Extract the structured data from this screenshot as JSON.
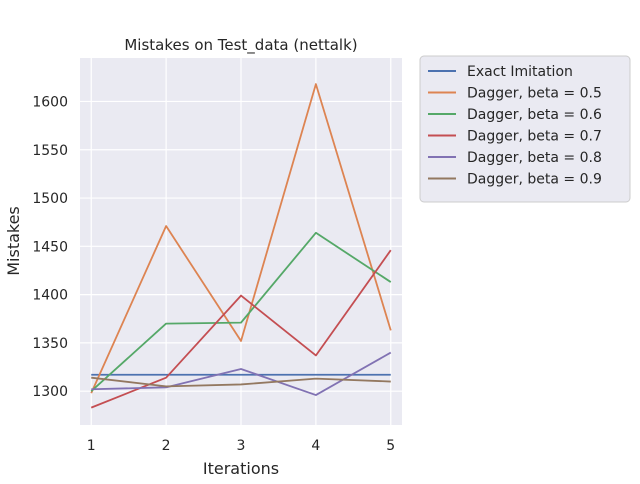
{
  "chart_data": {
    "type": "line",
    "title": "Mistakes on Test_data (nettalk)",
    "xlabel": "Iterations",
    "ylabel": "Mistakes",
    "x": [
      1,
      2,
      3,
      4,
      5
    ],
    "xticks": [
      1,
      2,
      3,
      4,
      5
    ],
    "xlim": [
      0.85,
      5.15
    ],
    "yticks": [
      1300,
      1350,
      1400,
      1450,
      1500,
      1550,
      1600
    ],
    "ylim": [
      1265,
      1645
    ],
    "grid": true,
    "legend_position": "outside-right",
    "series": [
      {
        "name": "Exact Imitation",
        "color": "#4c72b0",
        "values": [
          1317,
          1317,
          1317,
          1317,
          1317
        ]
      },
      {
        "name": "Dagger, beta = 0.5",
        "color": "#dd8452",
        "values": [
          1298,
          1471,
          1352,
          1618,
          1363
        ]
      },
      {
        "name": "Dagger, beta = 0.6",
        "color": "#55a868",
        "values": [
          1300,
          1370,
          1371,
          1464,
          1413
        ]
      },
      {
        "name": "Dagger, beta = 0.7",
        "color": "#c44e52",
        "values": [
          1283,
          1314,
          1399,
          1337,
          1446
        ]
      },
      {
        "name": "Dagger, beta = 0.8",
        "color": "#8172b3",
        "values": [
          1302,
          1304,
          1323,
          1296,
          1340
        ]
      },
      {
        "name": "Dagger, beta = 0.9",
        "color": "#937860",
        "values": [
          1314,
          1305,
          1307,
          1313,
          1310
        ]
      }
    ]
  }
}
